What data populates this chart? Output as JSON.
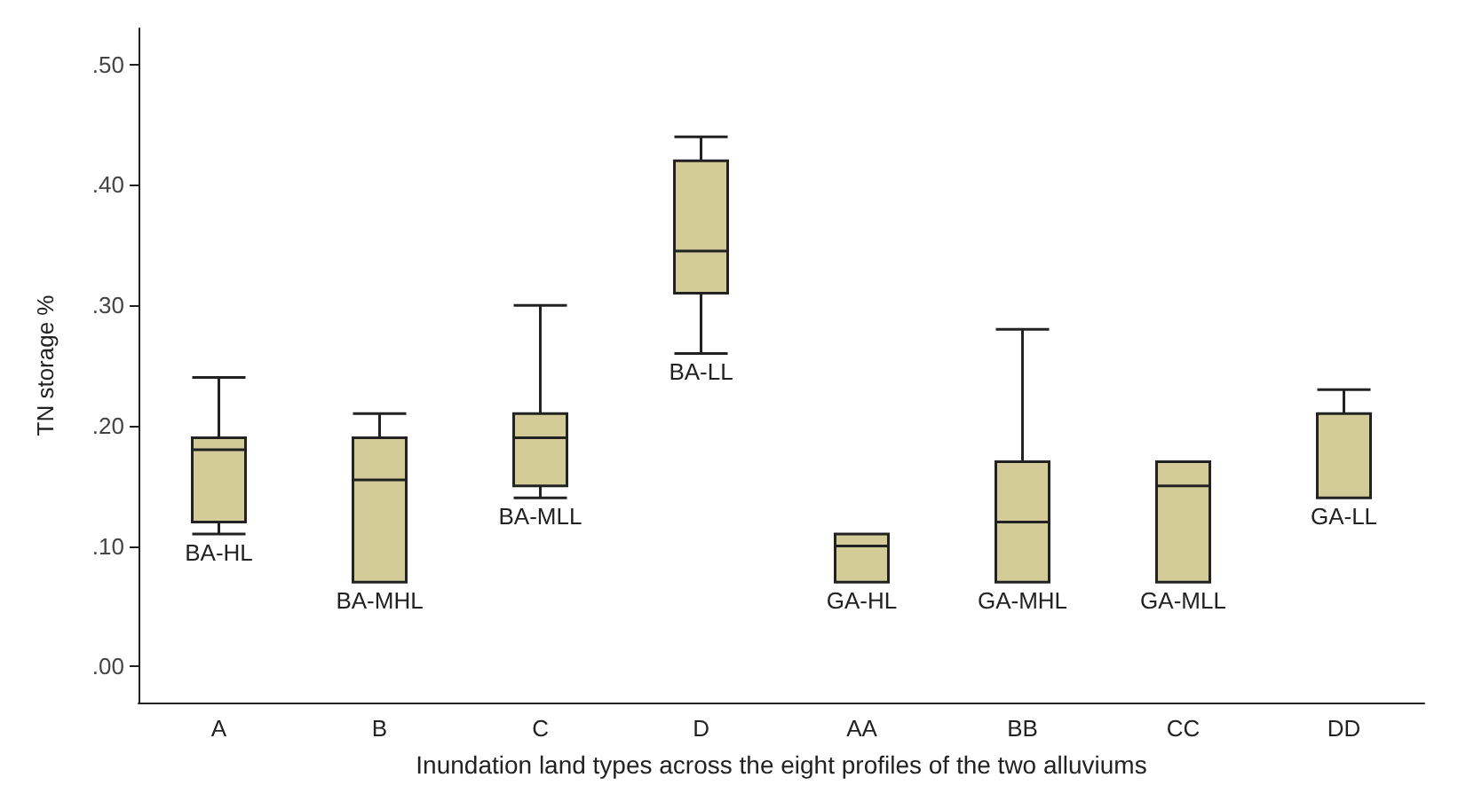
{
  "chart_data": {
    "type": "box",
    "xlabel": "Inundation land types across the eight profiles of the two alluviums",
    "ylabel": "TN storage %",
    "categories": [
      "A",
      "B",
      "C",
      "D",
      "AA",
      "BB",
      "CC",
      "DD"
    ],
    "color": "#d4cc98",
    "boxes": [
      {
        "low": 0.11,
        "q1": 0.12,
        "median": 0.18,
        "q3": 0.19,
        "high": 0.24
      },
      {
        "low": 0.07,
        "q1": 0.07,
        "median": 0.155,
        "q3": 0.19,
        "high": 0.21
      },
      {
        "low": 0.14,
        "q1": 0.15,
        "median": 0.19,
        "q3": 0.21,
        "high": 0.3
      },
      {
        "low": 0.26,
        "q1": 0.31,
        "median": 0.345,
        "q3": 0.42,
        "high": 0.44
      },
      {
        "low": 0.07,
        "q1": 0.07,
        "median": 0.1,
        "q3": 0.11,
        "high": 0.11
      },
      {
        "low": 0.07,
        "q1": 0.07,
        "median": 0.12,
        "q3": 0.17,
        "high": 0.28
      },
      {
        "low": 0.07,
        "q1": 0.07,
        "median": 0.15,
        "q3": 0.17,
        "high": 0.17
      },
      {
        "low": 0.14,
        "q1": 0.14,
        "median": 0.21,
        "q3": 0.21,
        "high": 0.23
      }
    ],
    "ylim": [
      -0.03,
      0.53
    ],
    "yticks": [
      {
        "value": 0,
        "label": ".00"
      },
      {
        "value": 0.1,
        "label": ".10"
      },
      {
        "value": 0.2,
        "label": ".20"
      },
      {
        "value": 0.3,
        "label": ".30"
      },
      {
        "value": 0.4,
        "label": ".40"
      },
      {
        "value": 0.5,
        "label": ".50"
      }
    ],
    "grid": false,
    "annotations": [
      {
        "text": "BA-HL",
        "x": "A",
        "y": 0.11
      },
      {
        "text": "BA-MHL",
        "x": "B",
        "y": 0.07
      },
      {
        "text": "BA-MLL",
        "x": "C",
        "y": 0.14
      },
      {
        "text": "BA-LL",
        "x": "D",
        "y": 0.26
      },
      {
        "text": "GA-HL",
        "x": "AA",
        "y": 0.07
      },
      {
        "text": "GA-MHL",
        "x": "BB",
        "y": 0.07
      },
      {
        "text": "GA-MLL",
        "x": "CC",
        "y": 0.07
      },
      {
        "text": "GA-LL",
        "x": "DD",
        "y": 0.14
      }
    ]
  }
}
